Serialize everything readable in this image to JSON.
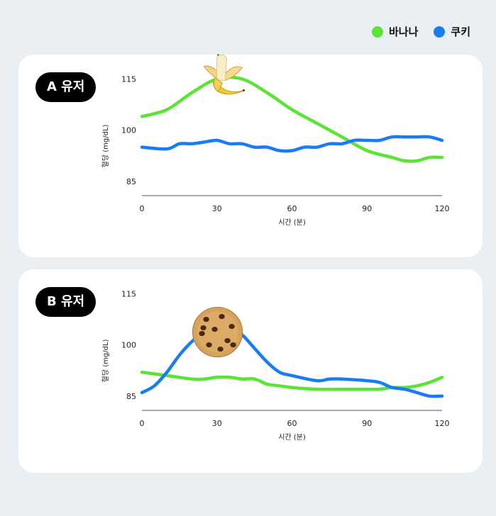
{
  "legend": {
    "banana_label": "바나나",
    "cookie_label": "쿠키",
    "banana_color": "#5be436",
    "cookie_color": "#1a7cf2"
  },
  "chart_data": [
    {
      "type": "line",
      "title": "A 유저",
      "xlabel": "시간 (분)",
      "ylabel": "혈당 (mg/dL)",
      "xticks": [
        0,
        30,
        60,
        90,
        120
      ],
      "yticks": [
        85,
        100,
        115
      ],
      "xlim": [
        0,
        120
      ],
      "ylim": [
        81,
        118
      ],
      "marker_icon": "banana-icon",
      "series": [
        {
          "name": "바나나",
          "color": "#5be436",
          "x": [
            0,
            10,
            20,
            30,
            40,
            50,
            60,
            70,
            80,
            90,
            100,
            105,
            110,
            115,
            120
          ],
          "y": [
            104,
            106,
            111,
            115,
            115,
            111,
            106,
            102,
            98,
            94,
            92,
            91,
            91,
            92,
            92
          ]
        },
        {
          "name": "쿠키",
          "color": "#1a7cf2",
          "x": [
            0,
            10,
            15,
            20,
            25,
            30,
            35,
            40,
            45,
            50,
            55,
            60,
            65,
            70,
            75,
            80,
            85,
            90,
            95,
            100,
            105,
            110,
            115,
            120
          ],
          "y": [
            95,
            94.5,
            96,
            96,
            96.5,
            97,
            96,
            96,
            95,
            95,
            94,
            94,
            95,
            95,
            96,
            96,
            97,
            97,
            97,
            98,
            98,
            98,
            98,
            97
          ]
        }
      ]
    },
    {
      "type": "line",
      "title": "B 유저",
      "xlabel": "시간 (분)",
      "ylabel": "혈당 (mg/dL)",
      "xticks": [
        0,
        30,
        60,
        90,
        120
      ],
      "yticks": [
        85,
        100,
        115
      ],
      "xlim": [
        0,
        120
      ],
      "ylim": [
        81,
        118
      ],
      "marker_icon": "cookie-icon",
      "series": [
        {
          "name": "바나나",
          "color": "#5be436",
          "x": [
            0,
            10,
            20,
            25,
            30,
            35,
            40,
            45,
            50,
            55,
            60,
            70,
            80,
            90,
            95,
            100,
            105,
            110,
            115,
            120
          ],
          "y": [
            92,
            91,
            90,
            90,
            90.5,
            90.5,
            90,
            90,
            88.5,
            88,
            87.5,
            87,
            87,
            87,
            87,
            87.5,
            87.5,
            88,
            89,
            90.5
          ]
        },
        {
          "name": "쿠키",
          "color": "#1a7cf2",
          "x": [
            0,
            5,
            10,
            15,
            20,
            25,
            30,
            35,
            40,
            45,
            50,
            55,
            60,
            70,
            75,
            80,
            90,
            95,
            100,
            105,
            110,
            115,
            120
          ],
          "y": [
            86,
            88,
            92,
            97,
            101,
            104,
            105,
            105,
            103,
            99,
            95,
            92,
            91,
            89.5,
            90,
            90,
            89.5,
            89,
            87.5,
            87,
            86,
            85,
            85
          ]
        }
      ]
    }
  ]
}
